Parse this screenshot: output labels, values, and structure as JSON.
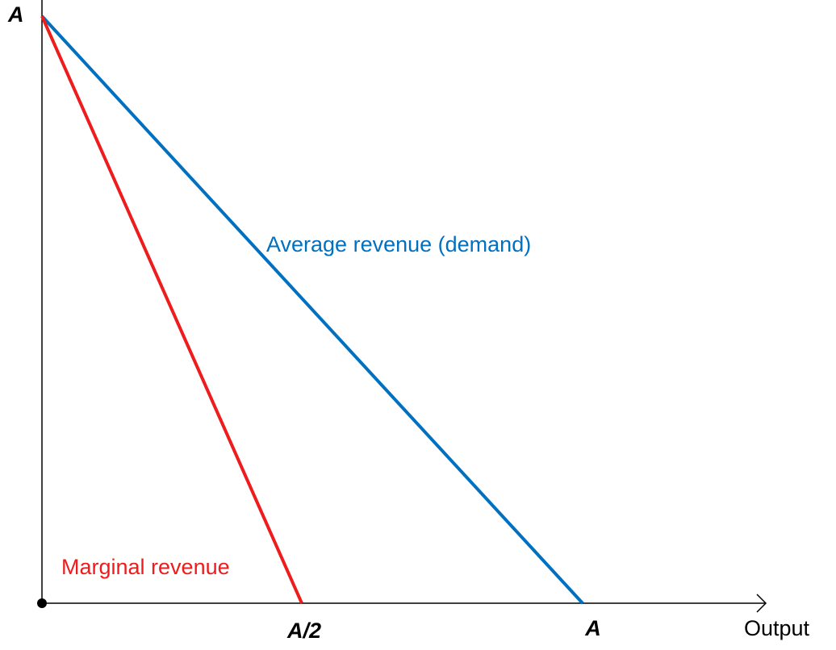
{
  "y_axis": {
    "label": "A"
  },
  "x_axis": {
    "ticks": [
      "A/2",
      "A"
    ],
    "label": "Output"
  },
  "curves": [
    {
      "label": "Average revenue (demand)"
    },
    {
      "label": "Marginal revenue"
    }
  ]
}
